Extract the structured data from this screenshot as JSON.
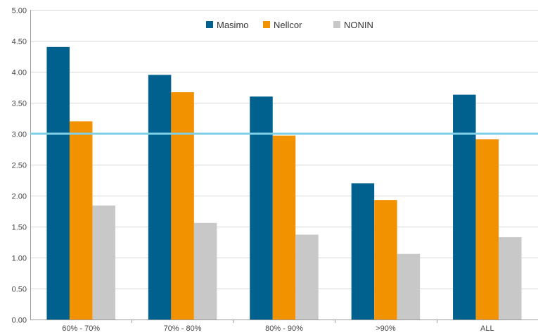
{
  "chart_data": {
    "type": "bar",
    "categories": [
      "60% - 70%",
      "70% - 80%",
      "80% - 90%",
      ">90%",
      "ALL"
    ],
    "series": [
      {
        "name": "Masimo",
        "color": "#00618f",
        "values": [
          4.4,
          3.95,
          3.6,
          2.2,
          3.63
        ]
      },
      {
        "name": "Nellcor",
        "color": "#f39200",
        "values": [
          3.2,
          3.67,
          2.97,
          1.93,
          2.91
        ]
      },
      {
        "name": "NONIN",
        "color": "#c8c8c8",
        "values": [
          1.84,
          1.56,
          1.37,
          1.06,
          1.33
        ]
      }
    ],
    "ylim": [
      0,
      5
    ],
    "yticks": [
      "0.00",
      "0.50",
      "1.00",
      "1.50",
      "2.00",
      "2.50",
      "3.00",
      "3.50",
      "4.00",
      "4.50",
      "5.00"
    ],
    "reference_line": {
      "value": 3.0,
      "color": "#7fcfe6"
    },
    "grid": true,
    "legend_position": "top-center"
  }
}
